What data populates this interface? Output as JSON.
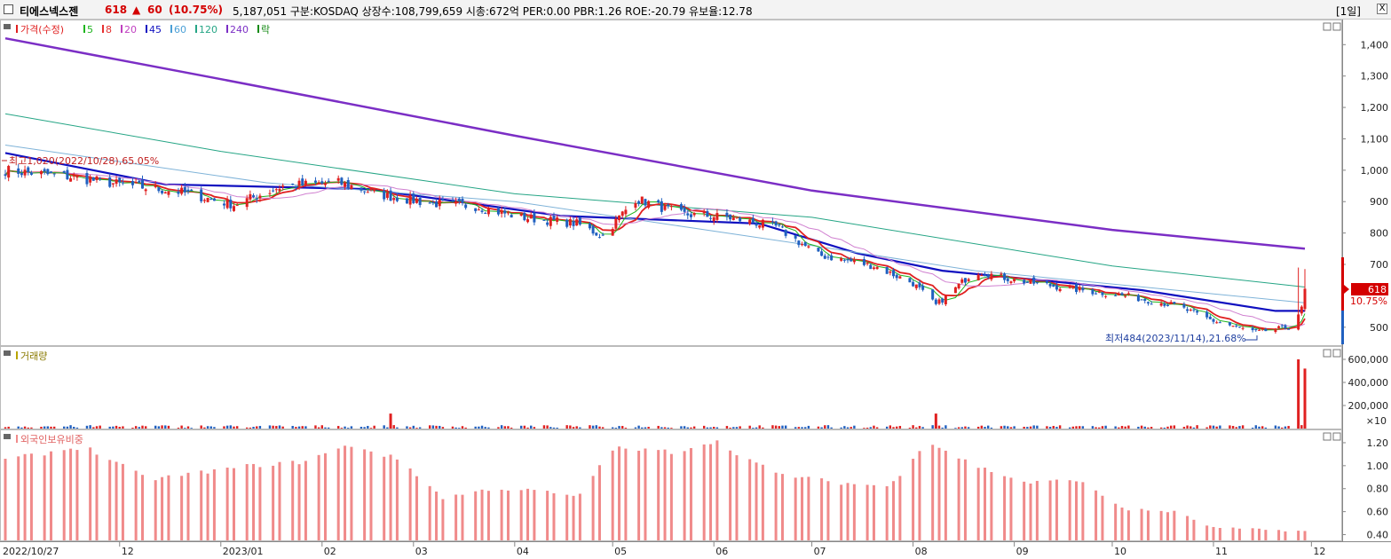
{
  "header": {
    "name": "티에스넥스젠",
    "price": "618",
    "arrow": "▲",
    "change": "60",
    "change_rate": "(10.75%)",
    "stats": "5,187,051  구분:KOSDAQ 상장수:108,799,659 시총:672억 PER:0.00 PBR:1.26 ROE:-20.79 유보율:12.78",
    "period": "[1일]",
    "close_label": "X"
  },
  "legend": {
    "price_label": "가격(수정)",
    "ma": [
      {
        "label": "5",
        "color": "#1fb51f"
      },
      {
        "label": "8",
        "color": "#e53030"
      },
      {
        "label": "20",
        "color": "#c040c0"
      },
      {
        "label": "45",
        "color": "#1010c0"
      },
      {
        "label": "60",
        "color": "#4a9fd6"
      },
      {
        "label": "120",
        "color": "#25a585"
      },
      {
        "label": "240",
        "color": "#7b2ec5"
      }
    ],
    "extra": "락",
    "volume_label": "거래량",
    "foreign_label": "외국인보유비중"
  },
  "annotations": {
    "high": "최고1,020(2022/10/28),65.05%",
    "low": "최저484(2023/11/14),21.68%",
    "current_price": "618",
    "current_rate": "10.75%",
    "volume_unit": "×10"
  },
  "colors": {
    "up": "#e02020",
    "down": "#2060c0",
    "foreign_bar": "#f08a8a"
  },
  "chart_data": [
    {
      "type": "candlestick",
      "title": "가격(수정)",
      "ylim": [
        440,
        1480
      ],
      "y_ticks": [
        "1,400",
        "1,300",
        "1,200",
        "1,100",
        "1,000",
        "900",
        "800",
        "700",
        "500"
      ],
      "x_labels": [
        "2022/10/27",
        "12",
        "2023/01",
        "02",
        "03",
        "04",
        "05",
        "06",
        "07",
        "08",
        "09",
        "10",
        "11",
        "12"
      ],
      "close_path": [
        [
          "2022-10-27",
          1000
        ],
        [
          "2022-11-15",
          980
        ],
        [
          "2022-12-01",
          955
        ],
        [
          "2022-12-20",
          930
        ],
        [
          "2023-01-05",
          890
        ],
        [
          "2023-01-20",
          950
        ],
        [
          "2023-02-06",
          960
        ],
        [
          "2023-02-20",
          920
        ],
        [
          "2023-03-06",
          895
        ],
        [
          "2023-03-20",
          885
        ],
        [
          "2023-04-03",
          850
        ],
        [
          "2023-04-20",
          830
        ],
        [
          "2023-04-28",
          790
        ],
        [
          "2023-05-08",
          910
        ],
        [
          "2023-05-22",
          860
        ],
        [
          "2023-06-05",
          850
        ],
        [
          "2023-06-20",
          820
        ],
        [
          "2023-07-03",
          730
        ],
        [
          "2023-07-20",
          695
        ],
        [
          "2023-08-01",
          640
        ],
        [
          "2023-08-08",
          570
        ],
        [
          "2023-08-20",
          680
        ],
        [
          "2023-09-01",
          650
        ],
        [
          "2023-09-20",
          620
        ],
        [
          "2023-10-05",
          600
        ],
        [
          "2023-10-20",
          570
        ],
        [
          "2023-11-01",
          520
        ],
        [
          "2023-11-14",
          484
        ],
        [
          "2023-11-24",
          500
        ],
        [
          "2023-11-28",
          558
        ],
        [
          "2023-11-29",
          618
        ]
      ],
      "moving_averages": {
        "240": [
          [
            "2022-10-27",
            1420
          ],
          [
            "2023-01-01",
            1290
          ],
          [
            "2023-04-01",
            1110
          ],
          [
            "2023-07-01",
            935
          ],
          [
            "2023-10-01",
            810
          ],
          [
            "2023-11-29",
            750
          ]
        ],
        "120": [
          [
            "2022-10-27",
            1180
          ],
          [
            "2023-01-01",
            1060
          ],
          [
            "2023-04-01",
            925
          ],
          [
            "2023-07-01",
            850
          ],
          [
            "2023-10-01",
            695
          ],
          [
            "2023-11-29",
            628
          ]
        ],
        "60": [
          [
            "2022-10-27",
            1080
          ],
          [
            "2023-01-15",
            960
          ],
          [
            "2023-04-01",
            900
          ],
          [
            "2023-07-01",
            760
          ],
          [
            "2023-08-20",
            680
          ],
          [
            "2023-11-29",
            578
          ]
        ],
        "45": [
          [
            "2022-10-27",
            1055
          ],
          [
            "2022-12-15",
            955
          ],
          [
            "2023-02-15",
            940
          ],
          [
            "2023-04-15",
            855
          ],
          [
            "2023-06-15",
            830
          ],
          [
            "2023-07-15",
            735
          ],
          [
            "2023-08-10",
            680
          ],
          [
            "2023-10-10",
            618
          ],
          [
            "2023-11-20",
            552
          ],
          [
            "2023-11-29",
            552
          ]
        ]
      }
    },
    {
      "type": "bar",
      "title": "거래량",
      "ylim": [
        0,
        700000
      ],
      "y_ticks": [
        "600,000",
        "400,000",
        "200,000"
      ],
      "spikes": [
        [
          "2023-02-22",
          130000
        ],
        [
          "2023-08-08",
          130000
        ],
        [
          "2023-11-27",
          600000
        ],
        [
          "2023-11-29",
          520000
        ]
      ],
      "typical": 20000
    },
    {
      "type": "bar",
      "title": "외국인보유비중",
      "ylim": [
        0.35,
        1.3
      ],
      "y_ticks": [
        "1.20",
        "1.00",
        "0.80",
        "0.60",
        "0.40"
      ],
      "path": [
        [
          "2022-10-27",
          1.05
        ],
        [
          "2022-11-20",
          1.17
        ],
        [
          "2022-12-10",
          0.88
        ],
        [
          "2023-01-10",
          1.0
        ],
        [
          "2023-01-25",
          1.03
        ],
        [
          "2023-02-10",
          1.18
        ],
        [
          "2023-02-25",
          1.05
        ],
        [
          "2023-03-10",
          0.72
        ],
        [
          "2023-03-25",
          0.8
        ],
        [
          "2023-04-10",
          0.78
        ],
        [
          "2023-04-20",
          0.72
        ],
        [
          "2023-05-01",
          1.15
        ],
        [
          "2023-05-20",
          1.12
        ],
        [
          "2023-06-01",
          1.22
        ],
        [
          "2023-06-20",
          0.93
        ],
        [
          "2023-07-10",
          0.85
        ],
        [
          "2023-07-25",
          0.82
        ],
        [
          "2023-08-05",
          1.22
        ],
        [
          "2023-08-20",
          1.0
        ],
        [
          "2023-09-05",
          0.85
        ],
        [
          "2023-09-20",
          0.88
        ],
        [
          "2023-10-05",
          0.62
        ],
        [
          "2023-10-20",
          0.6
        ],
        [
          "2023-11-01",
          0.46
        ],
        [
          "2023-11-29",
          0.43
        ]
      ]
    }
  ]
}
